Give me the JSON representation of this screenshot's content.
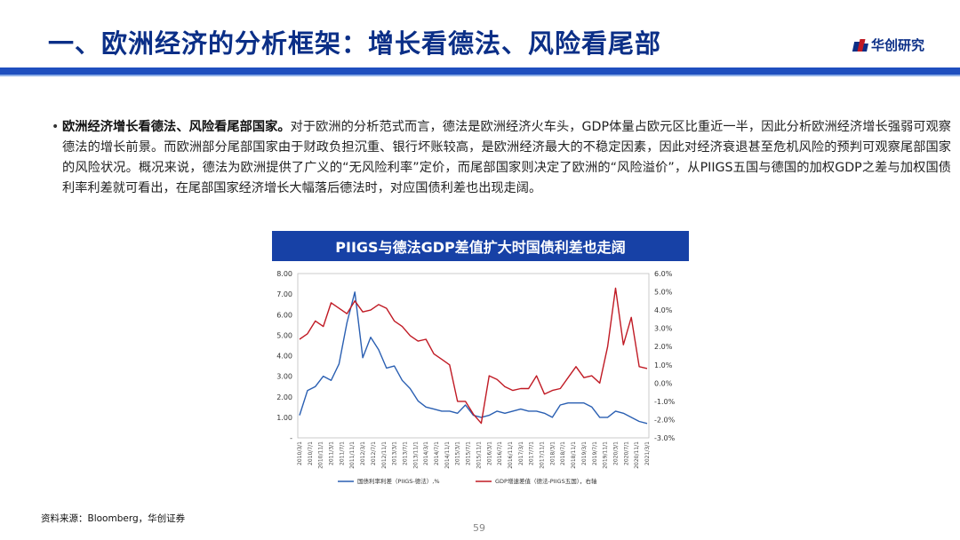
{
  "header": {
    "title": "一、欧洲经济的分析框架：增长看德法、风险看尾部",
    "logo_text": "华创研究",
    "logo_icon": "huachuang-logo-icon"
  },
  "bullet": {
    "lead": "欧洲经济增长看德法、风险看尾部国家。",
    "body": "对于欧洲的分析范式而言，德法是欧洲经济火车头，GDP体量占欧元区比重近一半，因此分析欧洲经济增长强弱可观察德法的增长前景。而欧洲部分尾部国家由于财政负担沉重、银行坏账较高，是欧洲经济最大的不稳定因素，因此对经济衰退甚至危机风险的预判可观察尾部国家的风险状况。概况来说，德法为欧洲提供了广义的“无风险利率”定价，而尾部国家则决定了欧洲的“风险溢价”，从PIIGS五国与德国的加权GDP之差与加权国债利率利差就可看出，在尾部国家经济增长大幅落后德法时，对应国债利差也出现走阔。"
  },
  "colors": {
    "brand_blue": "#0b2f87",
    "rule_blue": "#1f4fbf",
    "banner_blue": "#1741a6",
    "series_blue": "#2a5fb2",
    "series_red": "#c01a24"
  },
  "chart_data": {
    "type": "line",
    "title": "PIIGS与德法GDP差值扩大时国债利差也走阔",
    "x": [
      "2010-03",
      "2010-06",
      "2010-09",
      "2010-12",
      "2011-03",
      "2011-06",
      "2011-09",
      "2011-12",
      "2012-03",
      "2012-06",
      "2012-09",
      "2012-12",
      "2013-03",
      "2013-06",
      "2013-09",
      "2013-12",
      "2014-03",
      "2014-06",
      "2014-09",
      "2014-12",
      "2015-03",
      "2015-06",
      "2015-09",
      "2015-12",
      "2016-03",
      "2016-06",
      "2016-09",
      "2016-12",
      "2017-03",
      "2017-06",
      "2017-09",
      "2017-12",
      "2018-03",
      "2018-06",
      "2018-09",
      "2018-12",
      "2019-03",
      "2019-06",
      "2019-09",
      "2019-12",
      "2020-03",
      "2020-06",
      "2020-09",
      "2020-12",
      "2021-03"
    ],
    "xtick_labels": [
      "2010/3/1",
      "2010/7/1",
      "2010/11/1",
      "2011/3/1",
      "2011/7/1",
      "2011/11/1",
      "2012/3/1",
      "2012/7/1",
      "2012/11/1",
      "2013/3/1",
      "2013/7/1",
      "2013/11/1",
      "2014/3/1",
      "2014/7/1",
      "2014/11/1",
      "2015/3/1",
      "2015/7/1",
      "2015/11/1",
      "2016/3/1",
      "2016/7/1",
      "2016/11/1",
      "2017/3/1",
      "2017/7/1",
      "2017/11/1",
      "2018/3/1",
      "2018/7/1",
      "2018/11/1",
      "2019/3/1",
      "2019/7/1",
      "2019/11/1",
      "2020/3/1",
      "2020/7/1",
      "2020/11/1",
      "2021/3/1"
    ],
    "left_axis": {
      "ticks": [
        "8.00",
        "7.00",
        "6.00",
        "5.00",
        "4.00",
        "3.00",
        "2.00",
        "1.00",
        "-"
      ],
      "ylim": [
        0,
        8
      ]
    },
    "right_axis": {
      "ticks": [
        "6.0%",
        "5.0%",
        "4.0%",
        "3.0%",
        "2.0%",
        "1.0%",
        "0.0%",
        "-1.0%",
        "-2.0%",
        "-3.0%"
      ],
      "ylim": [
        -3,
        6
      ]
    },
    "series": [
      {
        "name": "国债利率利差（PIIGS-德法）,%",
        "axis": "left",
        "color": "#2a5fb2",
        "values": [
          1.1,
          2.3,
          2.5,
          3.0,
          2.8,
          3.6,
          5.6,
          7.1,
          3.9,
          4.9,
          4.3,
          3.4,
          3.5,
          2.8,
          2.4,
          1.8,
          1.5,
          1.4,
          1.3,
          1.3,
          1.2,
          1.6,
          1.1,
          1.0,
          1.1,
          1.3,
          1.2,
          1.3,
          1.4,
          1.3,
          1.3,
          1.2,
          1.0,
          1.6,
          1.7,
          1.7,
          1.7,
          1.5,
          1.0,
          1.0,
          1.3,
          1.2,
          1.0,
          0.8,
          0.7
        ]
      },
      {
        "name": "GDP增速差值（德法-PIIGS五国），右轴",
        "axis": "right",
        "color": "#c01a24",
        "values": [
          2.4,
          2.7,
          3.4,
          3.1,
          4.4,
          4.1,
          3.8,
          4.5,
          3.9,
          4.0,
          4.3,
          4.1,
          3.4,
          3.1,
          2.6,
          2.3,
          2.4,
          1.6,
          1.3,
          1.0,
          -1.0,
          -1.0,
          -1.7,
          -2.2,
          0.4,
          0.2,
          -0.2,
          -0.4,
          -0.3,
          -0.3,
          0.4,
          -0.6,
          -0.4,
          -0.3,
          0.3,
          0.9,
          0.3,
          0.4,
          0.0,
          2.0,
          5.2,
          2.1,
          3.6,
          0.9,
          0.8
        ]
      }
    ],
    "legend_position": "bottom"
  },
  "footer": {
    "source": "资料来源：Bloomberg，华创证券",
    "page_number": "59"
  }
}
